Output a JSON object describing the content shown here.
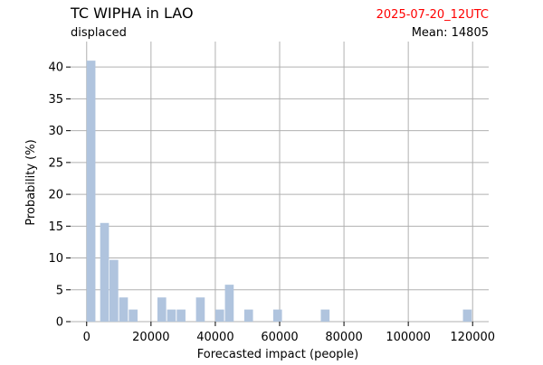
{
  "chart_data": {
    "type": "bar",
    "title": "TC WIPHA in LAO",
    "subtitle": "displaced",
    "date_label": "2025-07-20_12UTC",
    "mean_label": "Mean: 14805",
    "xlabel": "Forecasted impact (people)",
    "ylabel": "Probability (%)",
    "xlim": [
      -5000,
      125000
    ],
    "ylim": [
      0,
      44
    ],
    "x_ticks": [
      0,
      20000,
      40000,
      60000,
      80000,
      100000,
      120000
    ],
    "y_ticks": [
      0,
      5,
      10,
      15,
      20,
      25,
      30,
      35,
      40
    ],
    "grid": true,
    "bin_width": 3000,
    "bars": [
      {
        "x": 0,
        "value": 41
      },
      {
        "x": 4200,
        "value": 15.5
      },
      {
        "x": 7100,
        "value": 9.7
      },
      {
        "x": 10100,
        "value": 3.8
      },
      {
        "x": 13100,
        "value": 1.9
      },
      {
        "x": 22000,
        "value": 3.8
      },
      {
        "x": 25000,
        "value": 1.9
      },
      {
        "x": 28000,
        "value": 1.9
      },
      {
        "x": 34000,
        "value": 3.8
      },
      {
        "x": 40000,
        "value": 1.9
      },
      {
        "x": 43000,
        "value": 5.8
      },
      {
        "x": 49000,
        "value": 1.9
      },
      {
        "x": 58000,
        "value": 1.9
      },
      {
        "x": 72800,
        "value": 1.9
      },
      {
        "x": 117000,
        "value": 1.9
      }
    ],
    "colors": {
      "bar": "#b0c4de",
      "grid": "#b0b0b0",
      "date": "#ff0000",
      "text": "#000000"
    }
  }
}
